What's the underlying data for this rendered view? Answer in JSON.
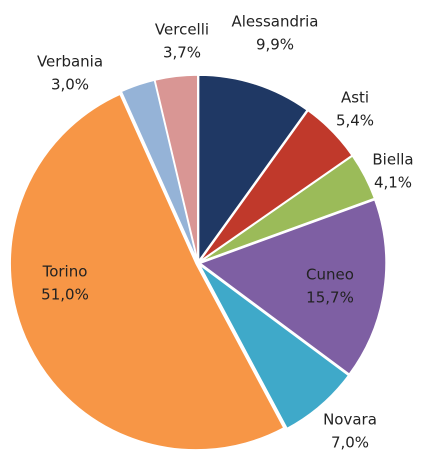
{
  "chart_data": {
    "type": "pie",
    "categories": [
      "Alessandria",
      "Asti",
      "Biella",
      "Cuneo",
      "Novara",
      "Torino",
      "Verbania",
      "Vercelli"
    ],
    "values": [
      9.9,
      5.4,
      4.1,
      15.7,
      7.0,
      51.0,
      3.0,
      3.7
    ],
    "value_labels": [
      "9,9%",
      "5,4%",
      "4,1%",
      "15,7%",
      "7,0%",
      "51,0%",
      "3,0%",
      "3,7%"
    ],
    "colors": [
      "#1f3864",
      "#c0392b",
      "#9bbb59",
      "#7e5fa3",
      "#3fa9c9",
      "#f79646",
      "#95b3d7",
      "#d99694"
    ]
  }
}
